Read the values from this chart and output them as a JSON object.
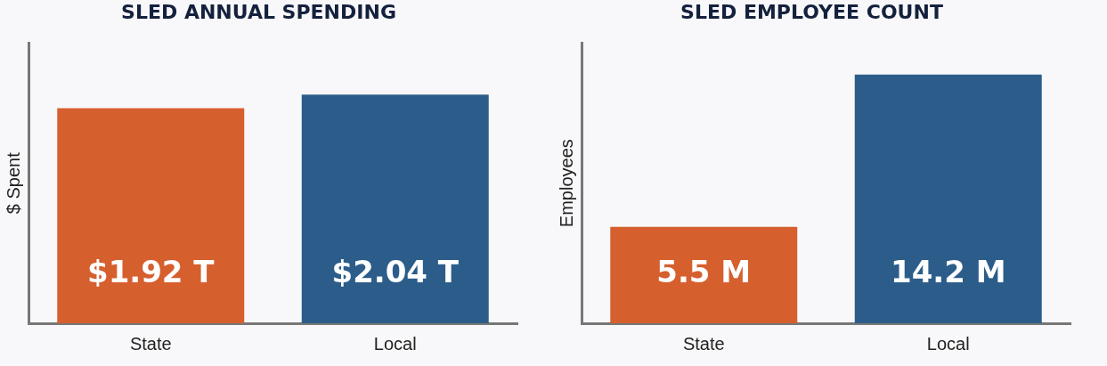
{
  "chart_data": [
    {
      "type": "bar",
      "title": "SLED ANNUAL SPENDING",
      "ylabel": "$ Spent",
      "categories": [
        "State",
        "Local"
      ],
      "values": [
        1.92,
        2.04
      ],
      "colors": [
        "#d65f2e",
        "#2c5d8a"
      ],
      "value_labels": [
        "$1.92 T",
        "$2.04 T"
      ],
      "tick_labels": "x"
    },
    {
      "type": "bar",
      "title": "SLED EMPLOYEE COUNT",
      "ylabel": "Employees",
      "categories": [
        "State",
        "Local"
      ],
      "values": [
        5.5,
        14.2
      ],
      "colors": [
        "#d65f2e",
        "#2c5d8a"
      ],
      "value_labels": [
        "5.5 M",
        "14.2 M"
      ],
      "tick_labels": "x"
    }
  ]
}
